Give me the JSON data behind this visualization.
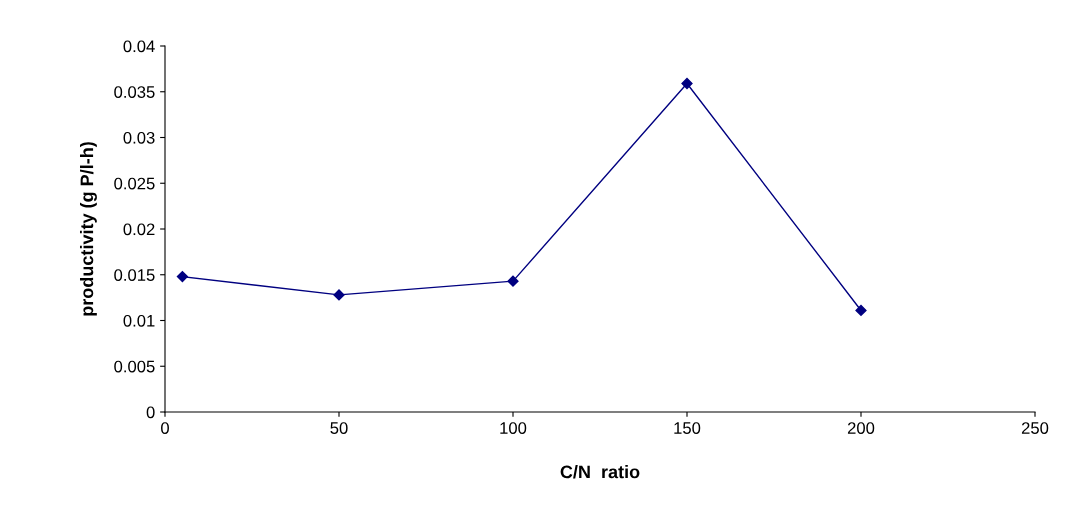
{
  "chart_data": {
    "type": "line",
    "xlabel": "C/N  ratio",
    "ylabel": "productivity (g P/l-h)",
    "x": [
      5,
      50,
      100,
      150,
      200
    ],
    "series": [
      {
        "color": "#000080",
        "values": [
          0.0148,
          0.0128,
          0.0143,
          0.0359,
          0.0111
        ]
      }
    ],
    "xlim": [
      0,
      250
    ],
    "xticks": [
      0,
      50,
      100,
      150,
      200,
      250
    ],
    "ylim": [
      0,
      0.04
    ],
    "yticks": [
      0,
      0.005,
      0.01,
      0.015,
      0.02,
      0.025,
      0.03,
      0.035,
      0.04
    ],
    "marker": "diamond",
    "line_style": "solid",
    "grid": false,
    "legend": false
  }
}
